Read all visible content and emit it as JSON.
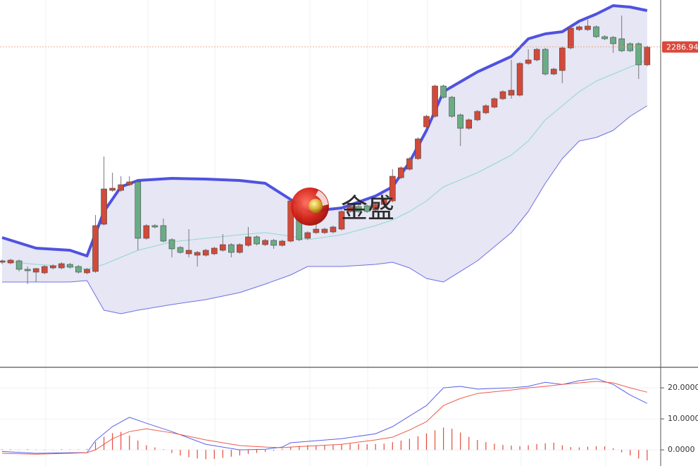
{
  "chart_data": [
    {
      "type": "candlestick",
      "ylim": [
        2241.6,
        2293.6
      ],
      "last_price": 2286.94,
      "watermark": "金盛",
      "up_color": "#d24a3a",
      "down_color": "#69ad85",
      "open": [
        2256.4,
        2256.3,
        2256.6,
        2255.4,
        2255.0,
        2254.9,
        2255.6,
        2255.6,
        2256.1,
        2255.8,
        2254.9,
        2255.1,
        2261.8,
        2266.6,
        2266.6,
        2267.4,
        2267.8,
        2259.8,
        2261.6,
        2261.6,
        2259.6,
        2258.5,
        2257.6,
        2257.4,
        2257.4,
        2257.6,
        2258.1,
        2258.9,
        2257.8,
        2258.8,
        2260.0,
        2258.9,
        2259.5,
        2258.8,
        2259.4,
        2265.1,
        2259.8,
        2260.6,
        2260.6,
        2260.7,
        2261.1,
        2263.6,
        2264.3,
        2264.4,
        2263.8,
        2264.6,
        2265.1,
        2268.4,
        2269.6,
        2271.1,
        2275.6,
        2277.1,
        2281.4,
        2279.8,
        2277.3,
        2275.4,
        2276.6,
        2277.6,
        2278.4,
        2279.6,
        2280.1,
        2280.1,
        2284.6,
        2285.1,
        2286.6,
        2283.1,
        2283.6,
        2286.8,
        2289.4,
        2289.4,
        2289.8,
        2288.4,
        2288.3,
        2288.1,
        2287.4,
        2287.4,
        2284.4
      ],
      "high": [
        2256.8,
        2256.9,
        2256.8,
        2255.8,
        2255.6,
        2256.0,
        2256.1,
        2256.4,
        2256.3,
        2256.0,
        2255.6,
        2263.1,
        2271.4,
        2269.1,
        2268.6,
        2268.6,
        2268.0,
        2261.8,
        2261.8,
        2262.6,
        2259.8,
        2258.7,
        2261.1,
        2258.0,
        2258.3,
        2258.6,
        2260.4,
        2259.1,
        2259.1,
        2261.4,
        2260.2,
        2259.7,
        2259.7,
        2259.6,
        2265.3,
        2265.3,
        2260.8,
        2262.6,
        2261.3,
        2261.6,
        2263.8,
        2264.5,
        2264.5,
        2264.6,
        2264.8,
        2265.5,
        2269.6,
        2270.0,
        2271.3,
        2274.1,
        2277.3,
        2281.6,
        2281.6,
        2280.0,
        2277.5,
        2276.8,
        2278.0,
        2278.8,
        2279.8,
        2280.8,
        2285.1,
        2284.8,
        2286.6,
        2286.8,
        2286.8,
        2284.0,
        2287.0,
        2289.8,
        2290.0,
        2290.8,
        2290.0,
        2288.6,
        2288.5,
        2291.4,
        2287.6,
        2287.6,
        2287.1
      ],
      "low": [
        2256.1,
        2256.1,
        2255.1,
        2253.3,
        2253.6,
        2254.7,
        2255.4,
        2255.4,
        2255.5,
        2254.8,
        2254.7,
        2254.9,
        2261.6,
        2266.4,
        2266.4,
        2267.2,
        2258.1,
        2259.6,
        2261.2,
        2259.2,
        2257.1,
        2257.6,
        2257.1,
        2255.8,
        2257.2,
        2257.4,
        2257.9,
        2257.1,
        2257.6,
        2258.6,
        2258.8,
        2258.7,
        2258.3,
        2258.6,
        2259.2,
        2259.4,
        2259.6,
        2260.4,
        2260.4,
        2260.5,
        2260.9,
        2263.4,
        2263.4,
        2263.4,
        2263.6,
        2264.4,
        2264.9,
        2268.2,
        2269.4,
        2270.9,
        2275.4,
        2276.9,
        2279.6,
        2276.9,
        2272.9,
        2275.2,
        2276.4,
        2277.4,
        2278.2,
        2279.4,
        2279.6,
        2279.9,
        2284.4,
        2284.9,
        2282.9,
        2282.9,
        2281.8,
        2286.6,
        2289.2,
        2289.2,
        2288.2,
        2287.9,
        2286.1,
        2286.2,
        2286.2,
        2282.4,
        2284.2
      ],
      "close": [
        2256.6,
        2256.7,
        2255.4,
        2255.2,
        2255.5,
        2255.8,
        2255.9,
        2256.2,
        2255.7,
        2255.0,
        2255.4,
        2261.6,
        2266.8,
        2266.9,
        2267.4,
        2267.8,
        2259.8,
        2261.6,
        2261.4,
        2259.4,
        2258.3,
        2257.8,
        2258.1,
        2257.8,
        2258.1,
        2258.4,
        2258.9,
        2257.8,
        2258.9,
        2260.0,
        2259.0,
        2259.5,
        2258.8,
        2259.4,
        2265.1,
        2259.6,
        2260.6,
        2261.1,
        2261.1,
        2261.4,
        2263.6,
        2264.3,
        2263.6,
        2263.6,
        2264.6,
        2265.3,
        2268.6,
        2269.8,
        2271.1,
        2273.9,
        2277.1,
        2281.4,
        2279.8,
        2277.1,
        2275.4,
        2276.6,
        2277.8,
        2278.6,
        2279.6,
        2280.6,
        2280.8,
        2284.6,
        2285.1,
        2286.6,
        2283.1,
        2283.8,
        2286.8,
        2289.6,
        2289.8,
        2289.9,
        2288.4,
        2288.1,
        2287.4,
        2286.4,
        2286.4,
        2284.4,
        2286.94
      ],
      "bands": [
        {
          "color": "#4f52e0",
          "x": [
            0,
            4,
            8,
            10,
            12,
            14,
            16,
            20,
            24,
            28,
            31,
            34,
            36,
            40,
            44,
            46,
            48,
            50,
            52,
            56,
            60,
            62,
            64,
            66,
            68,
            70,
            72,
            74,
            76
          ],
          "values": [
            2259.9,
            2258.4,
            2258.1,
            2257.3,
            2263.6,
            2267.1,
            2268.0,
            2268.3,
            2268.2,
            2268.0,
            2267.6,
            2265.3,
            2263.6,
            2264.1,
            2265.8,
            2267.1,
            2270.6,
            2275.1,
            2280.6,
            2283.4,
            2285.6,
            2288.1,
            2288.8,
            2289.1,
            2290.6,
            2291.6,
            2292.8,
            2292.6,
            2292.1
          ]
        },
        {
          "color": "#8fd8d0",
          "x": [
            0,
            4,
            8,
            10,
            12,
            14,
            16,
            20,
            24,
            28,
            31,
            34,
            36,
            40,
            44,
            46,
            48,
            50,
            52,
            56,
            60,
            62,
            64,
            66,
            68,
            70,
            72,
            74,
            76
          ],
          "values": [
            2256.6,
            2256.1,
            2255.8,
            2255.4,
            2256.1,
            2257.1,
            2258.1,
            2259.3,
            2259.8,
            2260.3,
            2260.6,
            2260.1,
            2259.6,
            2260.3,
            2261.6,
            2262.4,
            2263.6,
            2265.1,
            2267.1,
            2269.1,
            2271.6,
            2273.6,
            2276.6,
            2278.6,
            2280.6,
            2282.1,
            2283.1,
            2284.1,
            2285.1
          ]
        },
        {
          "color": "#6e70e6",
          "x": [
            0,
            4,
            8,
            10,
            12,
            14,
            16,
            20,
            24,
            28,
            31,
            34,
            36,
            40,
            44,
            46,
            48,
            50,
            52,
            56,
            60,
            62,
            64,
            66,
            68,
            70,
            72,
            74,
            76
          ],
          "values": [
            2253.6,
            2253.6,
            2253.6,
            2253.8,
            2249.6,
            2249.1,
            2249.6,
            2250.4,
            2251.1,
            2252.1,
            2253.3,
            2254.6,
            2255.8,
            2255.8,
            2256.1,
            2256.4,
            2255.6,
            2254.1,
            2253.6,
            2256.6,
            2260.6,
            2263.6,
            2267.6,
            2271.1,
            2273.6,
            2274.1,
            2275.1,
            2277.1,
            2278.6
          ]
        }
      ],
      "band_fill": "#e6e6f4"
    },
    {
      "type": "macd",
      "ylim": [
        -5.2,
        26.4
      ],
      "yticks": [
        {
          "value": 20,
          "label": "20.0000"
        },
        {
          "value": 10,
          "label": "10.0000"
        },
        {
          "value": 0,
          "label": "0.0000"
        }
      ],
      "grid": true,
      "histogram": {
        "color": "#e8493a",
        "values": [
          0.2,
          0.2,
          0.1,
          0.2,
          0.1,
          0.1,
          0.1,
          0.2,
          0.1,
          0.1,
          0.3,
          2.5,
          4.2,
          5.4,
          5.8,
          4.6,
          3.0,
          1.5,
          0.8,
          0.2,
          -1.0,
          -1.8,
          -2.4,
          -2.8,
          -3.0,
          -2.9,
          -2.6,
          -2.2,
          -1.8,
          -1.3,
          -1.0,
          -0.6,
          -0.3,
          0.3,
          1.0,
          1.3,
          1.5,
          1.4,
          1.5,
          1.7,
          1.9,
          2.0,
          1.9,
          1.8,
          1.9,
          2.0,
          2.5,
          3.0,
          3.6,
          4.4,
          5.3,
          6.3,
          7.2,
          6.8,
          5.6,
          4.2,
          3.2,
          2.5,
          2.0,
          1.6,
          1.4,
          1.2,
          1.5,
          1.9,
          2.1,
          2.3,
          1.5,
          0.9,
          0.8,
          1.0,
          1.2,
          1.1,
          0.5,
          -0.8,
          -1.8,
          -2.8,
          -3.4
        ]
      },
      "series": [
        {
          "color": "#5b62e6",
          "x": [
            0,
            4,
            8,
            10,
            11,
            13,
            15,
            17,
            20,
            24,
            28,
            31,
            33,
            34,
            40,
            44,
            46,
            48,
            50,
            52,
            54,
            56,
            60,
            62,
            64,
            66,
            68,
            70,
            72,
            74,
            76
          ],
          "values": [
            -0.5,
            -1.1,
            -0.9,
            -0.9,
            3.0,
            7.5,
            10.5,
            8.6,
            5.9,
            1.8,
            0,
            0.2,
            0.9,
            2.3,
            3.6,
            5.2,
            7.5,
            10.9,
            14.3,
            20,
            20.5,
            19.6,
            20,
            20.5,
            21.8,
            21.1,
            22.3,
            23,
            21.1,
            17.7,
            15
          ]
        },
        {
          "color": "#ee5a4a",
          "x": [
            0,
            4,
            8,
            10,
            11,
            13,
            15,
            17,
            20,
            24,
            28,
            31,
            33,
            34,
            40,
            44,
            46,
            48,
            50,
            52,
            54,
            56,
            60,
            62,
            64,
            66,
            68,
            70,
            72,
            74,
            76
          ],
          "values": [
            -1.1,
            -1.4,
            -1.1,
            -0.9,
            0,
            3.6,
            5.9,
            6.8,
            5.5,
            3.2,
            1.4,
            0.9,
            0.7,
            0.9,
            1.8,
            3.2,
            4.1,
            6.4,
            9.1,
            14.3,
            16.6,
            18.2,
            19.3,
            20,
            20.5,
            21.1,
            21.6,
            22.1,
            21.6,
            20,
            18.6
          ]
        }
      ]
    }
  ]
}
